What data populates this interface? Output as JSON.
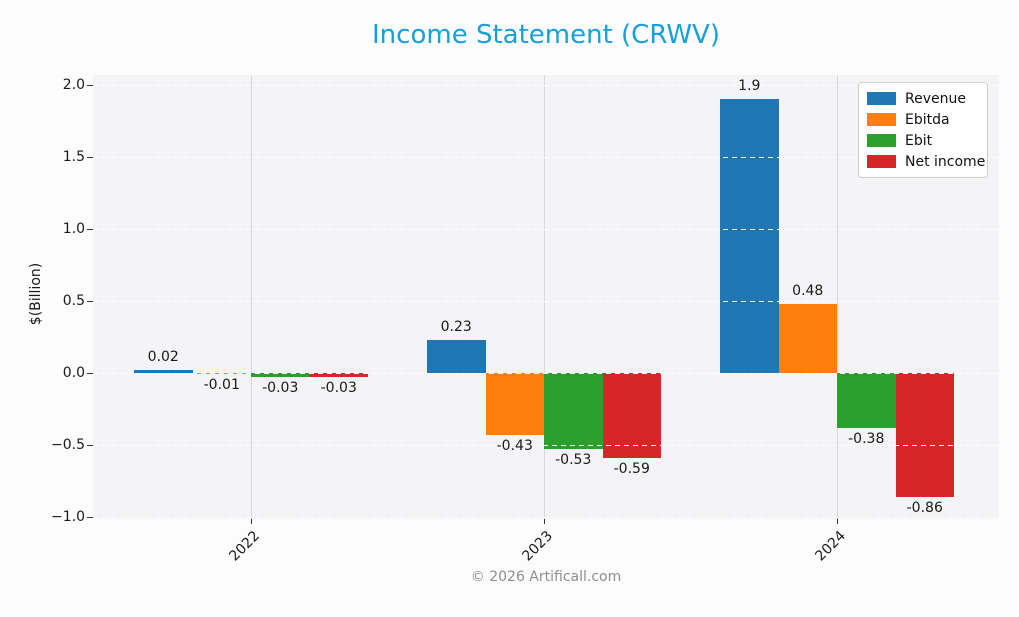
{
  "figure": {
    "title": "Income Statement (CRWV)",
    "title_color": "#18a0d8",
    "footer": "© 2026 Artificall.com"
  },
  "chart_data": {
    "type": "bar",
    "title": "Income Statement (CRWV)",
    "ylabel": "$(Billion)",
    "xlabel": "",
    "categories": [
      "2022",
      "2023",
      "2024"
    ],
    "series": [
      {
        "name": "Revenue",
        "color": "#1f77b4",
        "values": [
          0.02,
          0.23,
          1.9
        ],
        "labels": [
          "0.02",
          "0.23",
          "1.9"
        ]
      },
      {
        "name": "Ebitda",
        "color": "#ff7f0e",
        "values": [
          -0.01,
          -0.43,
          0.48
        ],
        "labels": [
          "-0.01",
          "-0.43",
          "0.48"
        ]
      },
      {
        "name": "Ebit",
        "color": "#2ca02c",
        "values": [
          -0.03,
          -0.53,
          -0.38
        ],
        "labels": [
          "-0.03",
          "-0.53",
          "-0.38"
        ]
      },
      {
        "name": "Net income",
        "color": "#d62728",
        "values": [
          -0.03,
          -0.59,
          -0.86
        ],
        "labels": [
          "-0.03",
          "-0.59",
          "-0.86"
        ]
      }
    ],
    "yticks": {
      "values": [
        2.0,
        1.5,
        1.0,
        0.5,
        0.0,
        -0.5,
        -1.0
      ],
      "labels": [
        "2.0",
        "1.5",
        "1.0",
        "0.5",
        "0.0",
        "−0.5",
        "−1.0"
      ]
    },
    "ylim": [
      -1.01,
      2.07
    ],
    "grid": true,
    "legend_position": "upper right"
  }
}
